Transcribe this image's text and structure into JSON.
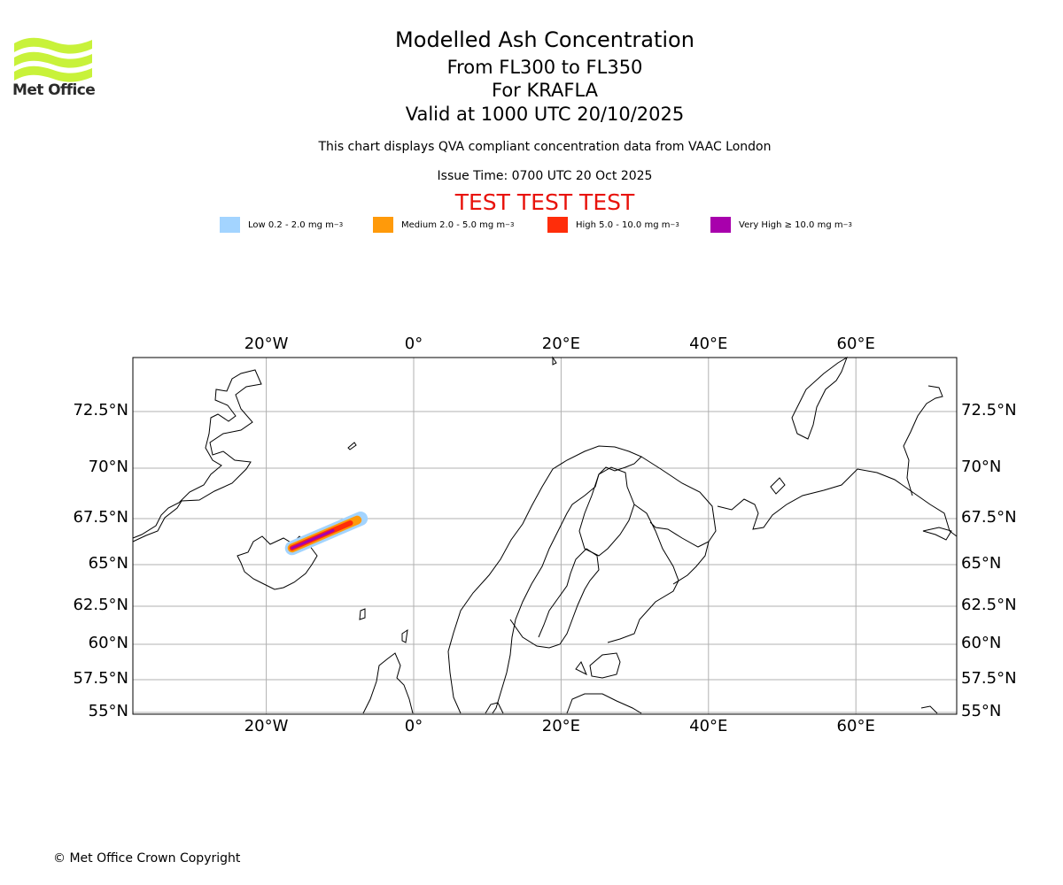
{
  "header": {
    "title": "Modelled Ash Concentration",
    "subtitle_levels": "From FL300 to FL350",
    "subtitle_volcano": "For KRAFLA",
    "subtitle_valid": "Valid at 1000 UTC 20/10/2025",
    "description": "This chart displays QVA compliant concentration data from VAAC London",
    "issue_time": "Issue Time: 0700 UTC 20 Oct 2025",
    "test_banner": "TEST TEST TEST"
  },
  "logo": {
    "name": "Met Office",
    "color": "#c8f23a"
  },
  "legend": [
    {
      "label": "Low 0.2 - 2.0 mg m",
      "unit_sup": "−3",
      "color": "#a3d4ff"
    },
    {
      "label": "Medium 2.0 - 5.0 mg m",
      "unit_sup": "−3",
      "color": "#ff9a0a"
    },
    {
      "label": "High 5.0 - 10.0 mg m",
      "unit_sup": "−3",
      "color": "#ff2d0a"
    },
    {
      "label": "Very High  ≥  10.0 mg m",
      "unit_sup": "−3",
      "color": "#a800ac"
    }
  ],
  "map": {
    "lon_range": [
      -38,
      74
    ],
    "lat_range": [
      55,
      75
    ],
    "lon_ticks": [
      {
        "value": -20,
        "label": "20°W"
      },
      {
        "value": 0,
        "label": "0°"
      },
      {
        "value": 20,
        "label": "20°E"
      },
      {
        "value": 40,
        "label": "40°E"
      },
      {
        "value": 60,
        "label": "60°E"
      }
    ],
    "lat_ticks": [
      {
        "value": 72.5,
        "label": "72.5°N"
      },
      {
        "value": 70,
        "label": "70°N"
      },
      {
        "value": 67.5,
        "label": "67.5°N"
      },
      {
        "value": 65,
        "label": "65°N"
      },
      {
        "value": 62.5,
        "label": "62.5°N"
      },
      {
        "value": 60,
        "label": "60°N"
      },
      {
        "value": 57.5,
        "label": "57.5°N"
      },
      {
        "value": 55,
        "label": "55°N"
      }
    ],
    "plume_start": {
      "lon": -16.5,
      "lat": 65.9
    },
    "plume_end": {
      "lon": -7.2,
      "lat": 67.5
    }
  },
  "footer": {
    "copyright": "© Met Office Crown Copyright"
  }
}
